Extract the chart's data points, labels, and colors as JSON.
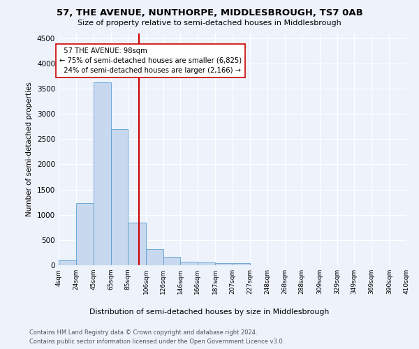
{
  "title": "57, THE AVENUE, NUNTHORPE, MIDDLESBROUGH, TS7 0AB",
  "subtitle": "Size of property relative to semi-detached houses in Middlesbrough",
  "xlabel": "Distribution of semi-detached houses by size in Middlesbrough",
  "ylabel": "Number of semi-detached properties",
  "footnote1": "Contains HM Land Registry data © Crown copyright and database right 2024.",
  "footnote2": "Contains public sector information licensed under the Open Government Licence v3.0.",
  "property_label": "57 THE AVENUE: 98sqm",
  "pct_smaller": 75,
  "n_smaller": 6825,
  "pct_larger": 24,
  "n_larger": 2166,
  "bar_color": "#c8d8ee",
  "bar_edge_color": "#5a9fd4",
  "vline_color": "#cc0000",
  "vline_x": 98,
  "annotation_box_edge": "#cc0000",
  "background_color": "#edf2fb",
  "categories": [
    "4sqm",
    "24sqm",
    "45sqm",
    "65sqm",
    "85sqm",
    "106sqm",
    "126sqm",
    "146sqm",
    "166sqm",
    "187sqm",
    "207sqm",
    "227sqm",
    "248sqm",
    "268sqm",
    "288sqm",
    "309sqm",
    "329sqm",
    "349sqm",
    "369sqm",
    "390sqm",
    "410sqm"
  ],
  "bin_edges": [
    4,
    24,
    45,
    65,
    85,
    106,
    126,
    146,
    166,
    187,
    207,
    227,
    248,
    268,
    288,
    309,
    329,
    349,
    369,
    390,
    410
  ],
  "values": [
    90,
    1230,
    3620,
    2700,
    840,
    320,
    160,
    75,
    55,
    45,
    35,
    0,
    0,
    0,
    0,
    0,
    0,
    0,
    0,
    0
  ],
  "ylim": [
    0,
    4600
  ],
  "yticks": [
    0,
    500,
    1000,
    1500,
    2000,
    2500,
    3000,
    3500,
    4000,
    4500
  ]
}
